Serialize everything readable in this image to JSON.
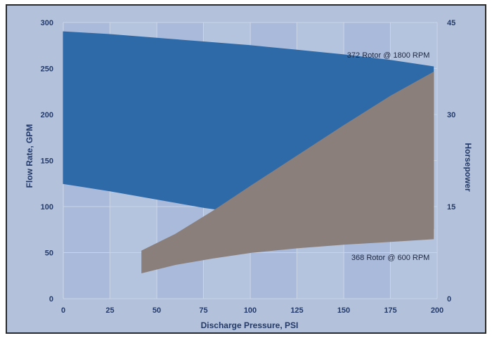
{
  "chart_data": {
    "type": "area",
    "xlabel": "Discharge Pressure, PSI",
    "ylabel": "Flow Rate, GPM",
    "y2label": "Horsepower",
    "xlim": [
      0,
      200
    ],
    "ylim": [
      0,
      300
    ],
    "y2lim": [
      0,
      45
    ],
    "x_ticks": [
      "0",
      "25",
      "50",
      "75",
      "100",
      "125",
      "150",
      "175",
      "200"
    ],
    "y_ticks": [
      "0",
      "50",
      "100",
      "150",
      "200",
      "250",
      "300"
    ],
    "y2_ticks": [
      "0",
      "15",
      "30",
      "45"
    ],
    "grid": true,
    "series": [
      {
        "name": "372 Rotor @ 1800 RPM",
        "color": "#2e6aa8",
        "upper": [
          [
            0,
            290
          ],
          [
            25,
            287
          ],
          [
            50,
            283
          ],
          [
            75,
            279
          ],
          [
            100,
            275
          ],
          [
            125,
            270
          ],
          [
            150,
            265
          ],
          [
            175,
            259
          ],
          [
            198,
            252
          ]
        ],
        "lower": [
          [
            0,
            125
          ],
          [
            25,
            117
          ],
          [
            50,
            108
          ],
          [
            75,
            99
          ],
          [
            100,
            92
          ],
          [
            125,
            88
          ],
          [
            150,
            84
          ],
          [
            175,
            80
          ],
          [
            198,
            76
          ]
        ]
      },
      {
        "name": "368 Rotor @ 600 RPM",
        "color": "#8a7f7b",
        "upper": [
          [
            42,
            52
          ],
          [
            60,
            70
          ],
          [
            80,
            95
          ],
          [
            100,
            122
          ],
          [
            125,
            155
          ],
          [
            150,
            188
          ],
          [
            175,
            220
          ],
          [
            198,
            246
          ]
        ],
        "lower": [
          [
            42,
            28
          ],
          [
            60,
            37
          ],
          [
            80,
            44
          ],
          [
            100,
            50
          ],
          [
            125,
            55
          ],
          [
            150,
            59
          ],
          [
            175,
            62
          ],
          [
            198,
            65
          ]
        ]
      }
    ],
    "annotations": [
      {
        "text": "372 Rotor @ 1800 RPM",
        "x": 196,
        "y": 262
      },
      {
        "text": "368 Rotor @ 600 RPM",
        "x": 196,
        "y": 42
      }
    ]
  }
}
